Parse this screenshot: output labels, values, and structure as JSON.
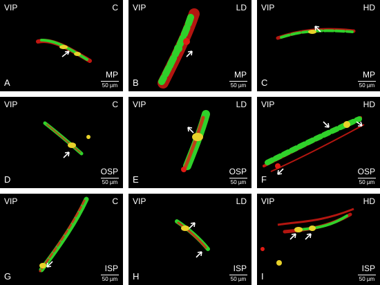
{
  "figure": {
    "panels": [
      {
        "letter": "A",
        "marker": "VIP",
        "group": "C",
        "region": "MP",
        "scale": "50 µm"
      },
      {
        "letter": "B",
        "marker": "VIP",
        "group": "LD",
        "region": "MP",
        "scale": "50 µm"
      },
      {
        "letter": "C",
        "marker": "VIP",
        "group": "HD",
        "region": "MP",
        "scale": "50 µm"
      },
      {
        "letter": "D",
        "marker": "VIP",
        "group": "C",
        "region": "OSP",
        "scale": "50 µm"
      },
      {
        "letter": "E",
        "marker": "VIP",
        "group": "LD",
        "region": "OSP",
        "scale": "50 µm"
      },
      {
        "letter": "F",
        "marker": "VIP",
        "group": "HD",
        "region": "OSP",
        "scale": "50 µm"
      },
      {
        "letter": "G",
        "marker": "VIP",
        "group": "C",
        "region": "ISP",
        "scale": "50 µm"
      },
      {
        "letter": "H",
        "marker": "VIP",
        "group": "LD",
        "region": "ISP",
        "scale": "50 µm"
      },
      {
        "letter": "I",
        "marker": "VIP",
        "group": "HD",
        "region": "ISP",
        "scale": "50 µm"
      }
    ],
    "colors": {
      "green": "#2fd12a",
      "red": "#e01b14",
      "yellow": "#e8d22a",
      "background": "#000000"
    }
  }
}
